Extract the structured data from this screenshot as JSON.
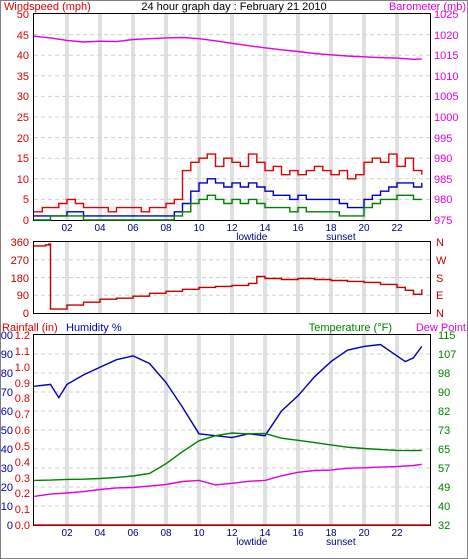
{
  "panel1": {
    "title": "24 hour graph day : February 21 2010",
    "left_label": "Windspeed (mph)",
    "right_label": "Barometer (mb)",
    "left_ticks": [
      "0",
      "5",
      "10",
      "15",
      "20",
      "25",
      "30",
      "35",
      "40",
      "45",
      "50"
    ],
    "right_ticks": [
      "975",
      "980",
      "985",
      "990",
      "995",
      "1000",
      "1005",
      "1010",
      "1015",
      "1020",
      "1025"
    ],
    "x_ticks": [
      "02",
      "04",
      "06",
      "08",
      "10",
      "12",
      "14",
      "16",
      "18",
      "20",
      "22"
    ],
    "x_markers": [
      "lowtide",
      "sunset"
    ]
  },
  "panel2": {
    "left_ticks": [
      "0",
      "90",
      "180",
      "270",
      "360"
    ],
    "right_ticks": [
      "N",
      "E",
      "S",
      "W",
      "N"
    ]
  },
  "panel3": {
    "left_label_1": "Rainfall (in)",
    "left_label_2": "Humidity %",
    "right_label_1": "Temperature (°F)",
    "right_label_2": "Dew Point",
    "humidity_ticks": [
      "0",
      "10",
      "20",
      "30",
      "40",
      "50",
      "60",
      "70",
      "80",
      "90",
      "100"
    ],
    "rain_ticks": [
      "0.0",
      "0.1",
      "0.2",
      "0.3",
      "0.4",
      "0.5",
      "0.6",
      "0.7",
      "0.8",
      "0.9",
      "1.0",
      "1.1",
      "1.2"
    ],
    "temp_ticks": [
      "32",
      "40",
      "49",
      "57",
      "65",
      "73",
      "82",
      "90",
      "98",
      "107",
      "115"
    ],
    "x_ticks": [
      "02",
      "04",
      "06",
      "08",
      "10",
      "12",
      "14",
      "16",
      "18",
      "20",
      "22"
    ],
    "x_markers": [
      "lowtide",
      "sunset"
    ]
  },
  "colors": {
    "wind": "#e00000",
    "gust_avg": "#0000c0",
    "wind_avg": "#008000",
    "barometer": "#e000e0",
    "direction": "#c00000",
    "humidity": "#0000b0",
    "temperature": "#008000",
    "dewpoint": "#e000e0",
    "rain": "#e00000"
  },
  "chart_data": [
    {
      "type": "line",
      "title": "24 hour graph day : February 21 2010",
      "x_unit": "hour",
      "xlim": [
        0,
        24
      ],
      "axes": {
        "left": {
          "label": "Windspeed (mph)",
          "ylim": [
            0,
            50
          ]
        },
        "right": {
          "label": "Barometer (mb)",
          "ylim": [
            975,
            1025
          ]
        }
      },
      "series": [
        {
          "name": "Windspeed (mph)",
          "axis": "left",
          "color": "#e00000",
          "x": [
            0,
            0.5,
            1,
            1.5,
            2,
            2.5,
            3,
            3.5,
            4,
            4.5,
            5,
            5.5,
            6,
            6.5,
            7,
            7.5,
            8,
            8.5,
            9,
            9.5,
            10,
            10.5,
            11,
            11.5,
            12,
            12.5,
            13,
            13.5,
            14,
            14.5,
            15,
            15.5,
            16,
            16.5,
            17,
            17.5,
            18,
            18.5,
            19,
            19.5,
            20,
            20.5,
            21,
            21.5,
            22,
            22.5,
            23,
            23.5
          ],
          "y": [
            2,
            3,
            3,
            4,
            5,
            4,
            3,
            3,
            3,
            2,
            3,
            3,
            3,
            2,
            3,
            3,
            4,
            5,
            12,
            14,
            15,
            16,
            13,
            15,
            14,
            13,
            16,
            14,
            12,
            13,
            11,
            12,
            11,
            12,
            13,
            12,
            11,
            12,
            10,
            11,
            14,
            15,
            14,
            16,
            13,
            15,
            12,
            11
          ]
        },
        {
          "axis": "left",
          "color": "#0000c0",
          "x": [
            0,
            1,
            2,
            3,
            4,
            5,
            6,
            7,
            8,
            8.5,
            9,
            9.5,
            10,
            10.5,
            11,
            11.5,
            12,
            12.5,
            13,
            13.5,
            14,
            14.5,
            15,
            15.5,
            16,
            16.5,
            17,
            17.5,
            18,
            18.5,
            19,
            19.5,
            20,
            20.5,
            21,
            21.5,
            22,
            22.5,
            23,
            23.5
          ],
          "y": [
            1,
            1,
            2,
            1,
            1,
            1,
            1,
            1,
            1,
            2,
            4,
            7,
            9,
            10,
            9,
            8,
            9,
            8,
            9,
            8,
            7,
            6,
            6,
            5,
            6,
            5,
            5,
            5,
            5,
            4,
            3,
            3,
            5,
            6,
            7,
            8,
            9,
            9,
            8,
            9
          ]
        },
        {
          "axis": "left",
          "color": "#008000",
          "x": [
            0,
            1,
            2,
            3,
            4,
            5,
            6,
            7,
            8,
            8.5,
            9,
            9.5,
            10,
            10.5,
            11,
            11.5,
            12,
            12.5,
            13,
            13.5,
            14,
            14.5,
            15,
            15.5,
            16,
            16.5,
            17,
            17.5,
            18,
            18.5,
            19,
            19.5,
            20,
            20.5,
            21,
            21.5,
            22,
            22.5,
            23,
            23.5
          ],
          "y": [
            0,
            1,
            1,
            0,
            0,
            0,
            0,
            0,
            0,
            1,
            2,
            4,
            5,
            6,
            5,
            4,
            5,
            4,
            5,
            4,
            3,
            3,
            3,
            2,
            3,
            2,
            2,
            2,
            2,
            1,
            1,
            1,
            3,
            4,
            5,
            5,
            6,
            6,
            5,
            5
          ]
        },
        {
          "name": "Barometer (mb)",
          "axis": "right",
          "color": "#e000e0",
          "x": [
            0,
            1,
            2,
            3,
            4,
            5,
            6,
            7,
            8,
            9,
            10,
            11,
            12,
            13,
            14,
            15,
            16,
            17,
            18,
            19,
            20,
            21,
            22,
            23,
            23.5
          ],
          "y": [
            1019.6,
            1019.2,
            1018.6,
            1018.2,
            1018.4,
            1018.3,
            1018.8,
            1019.0,
            1019.2,
            1019.3,
            1019.0,
            1018.5,
            1017.9,
            1017.3,
            1016.8,
            1016.3,
            1015.9,
            1015.4,
            1015.1,
            1014.8,
            1014.6,
            1014.4,
            1014.3,
            1014.0,
            1014.1
          ]
        }
      ]
    },
    {
      "type": "line",
      "x_unit": "hour",
      "xlim": [
        0,
        24
      ],
      "axes": {
        "left": {
          "ylim": [
            0,
            360
          ],
          "ticks": [
            "0",
            "90",
            "180",
            "270",
            "360"
          ]
        },
        "right": {
          "ticks": [
            "N",
            "E",
            "S",
            "W",
            "N"
          ]
        }
      },
      "series": [
        {
          "axis": "left",
          "color": "#c00000",
          "x": [
            0,
            0.7,
            0.9,
            1,
            2,
            3,
            4,
            5,
            6,
            7,
            8,
            9,
            10,
            11,
            12,
            13,
            13.5,
            14,
            15,
            16,
            17,
            18,
            19,
            20,
            21,
            22,
            22.5,
            23,
            23.5
          ],
          "y": [
            340,
            345,
            350,
            20,
            40,
            55,
            70,
            75,
            85,
            100,
            110,
            120,
            130,
            135,
            140,
            150,
            185,
            175,
            170,
            175,
            170,
            165,
            160,
            155,
            145,
            130,
            115,
            95,
            120
          ]
        }
      ]
    },
    {
      "type": "line",
      "x_unit": "hour",
      "xlim": [
        0,
        24
      ],
      "axes": {
        "left": {
          "label": "Rainfall (in) / Humidity %",
          "ylim": [
            0,
            100
          ]
        },
        "right": {
          "label": "Temperature (°F)",
          "ylim": [
            32,
            115
          ]
        }
      },
      "series": [
        {
          "name": "Rainfall (in)",
          "axis": "left-rain",
          "color": "#e00000",
          "x": [
            0,
            24
          ],
          "y": [
            0.0,
            0.0
          ]
        },
        {
          "name": "Humidity %",
          "axis": "left",
          "color": "#0000b0",
          "x": [
            0,
            1,
            1.5,
            2,
            3,
            4,
            5,
            6,
            7,
            8,
            9,
            10,
            11,
            12,
            13,
            14,
            15,
            16,
            17,
            18,
            19,
            20,
            21,
            22,
            22.5,
            23,
            23.5
          ],
          "y": [
            73,
            74,
            67,
            74,
            79,
            83,
            87,
            89,
            85,
            75,
            62,
            48,
            47,
            46,
            48,
            47,
            60,
            68,
            78,
            86,
            92,
            94,
            95,
            89,
            86,
            88,
            94
          ]
        },
        {
          "name": "Temperature (°F)",
          "axis": "right",
          "color": "#008000",
          "x": [
            0,
            1,
            2,
            3,
            4,
            5,
            6,
            7,
            8,
            9,
            10,
            11,
            12,
            13,
            14,
            15,
            16,
            17,
            18,
            19,
            20,
            21,
            22,
            23,
            23.5
          ],
          "y": [
            51.5,
            51.6,
            51.9,
            52.0,
            52.3,
            52.8,
            53.4,
            54.5,
            58.8,
            64.0,
            68.8,
            71.0,
            72.2,
            71.8,
            72.0,
            69.9,
            69.0,
            68.0,
            67.0,
            66.0,
            65.4,
            65.0,
            64.6,
            64.5,
            64.6
          ]
        },
        {
          "name": "Dew Point",
          "axis": "right",
          "color": "#e000e0",
          "x": [
            0,
            1,
            2,
            3,
            4,
            5,
            6,
            7,
            8,
            9,
            10,
            11,
            12,
            13,
            14,
            15,
            16,
            17,
            18,
            19,
            20,
            21,
            22,
            23,
            23.5
          ],
          "y": [
            44.5,
            45.5,
            46.0,
            46.6,
            47.5,
            48.2,
            48.4,
            49.0,
            49.7,
            51.0,
            51.5,
            49.5,
            50.2,
            51.1,
            51.5,
            53.5,
            55.0,
            55.8,
            56.0,
            56.8,
            57.0,
            57.3,
            57.5,
            58.0,
            58.5
          ]
        }
      ]
    }
  ]
}
